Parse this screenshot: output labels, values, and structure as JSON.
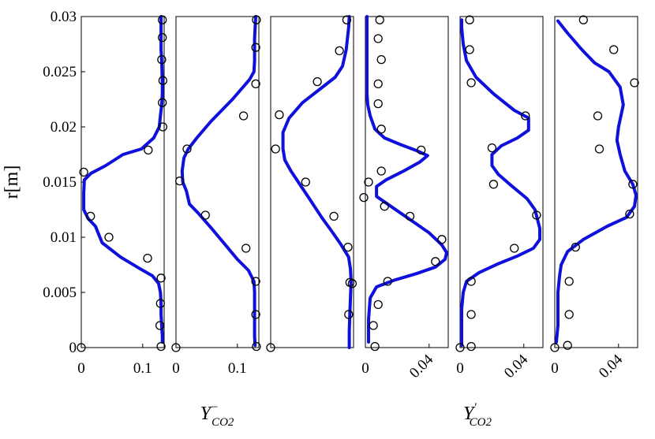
{
  "chart_data": {
    "type": "line",
    "ylabel": "r[m]",
    "ylim": [
      0,
      0.03
    ],
    "yticks": [
      "0",
      "0.005",
      "0.01",
      "0.015",
      "0.02",
      "0.025",
      "0.03"
    ],
    "group_labels": [
      {
        "base": "Y",
        "sup": "−",
        "sub": "CO2"
      },
      {
        "base": "Y",
        "sup": "′",
        "sub": "CO2"
      }
    ],
    "panels": [
      {
        "xlim": [
          0,
          0.135
        ],
        "xticks": [
          {
            "value": 0,
            "label": "0"
          },
          {
            "value": 0.1,
            "label": "0.1"
          }
        ],
        "xtick_rotated": false,
        "line": [
          [
            0.13,
            0.03
          ],
          [
            0.13,
            0.029
          ],
          [
            0.13,
            0.028
          ],
          [
            0.13,
            0.027
          ],
          [
            0.131,
            0.026
          ],
          [
            0.132,
            0.024
          ],
          [
            0.132,
            0.023
          ],
          [
            0.131,
            0.022
          ],
          [
            0.129,
            0.021
          ],
          [
            0.127,
            0.02
          ],
          [
            0.118,
            0.019
          ],
          [
            0.098,
            0.018
          ],
          [
            0.068,
            0.0175
          ],
          [
            0.04,
            0.0165
          ],
          [
            0.016,
            0.0158
          ],
          [
            0.005,
            0.0152
          ],
          [
            0.004,
            0.014
          ],
          [
            0.004,
            0.0125
          ],
          [
            0.011,
            0.0117
          ],
          [
            0.023,
            0.011
          ],
          [
            0.034,
            0.0095
          ],
          [
            0.064,
            0.0082
          ],
          [
            0.094,
            0.0072
          ],
          [
            0.116,
            0.0065
          ],
          [
            0.126,
            0.0058
          ],
          [
            0.129,
            0.005
          ],
          [
            0.13,
            0.004
          ],
          [
            0.13,
            0.003
          ],
          [
            0.131,
            0.002
          ],
          [
            0.132,
            0.001
          ],
          [
            0.132,
            0.0005
          ]
        ],
        "points": [
          [
            0.132,
            0.0297
          ],
          [
            0.132,
            0.0281
          ],
          [
            0.131,
            0.0261
          ],
          [
            0.133,
            0.0242
          ],
          [
            0.132,
            0.0222
          ],
          [
            0.133,
            0.02
          ],
          [
            0.109,
            0.0179
          ],
          [
            0.004,
            0.0159
          ],
          [
            0.015,
            0.0119
          ],
          [
            0.045,
            0.01
          ],
          [
            0.108,
            0.0081
          ],
          [
            0.13,
            0.0063
          ],
          [
            0.129,
            0.004
          ],
          [
            0.128,
            0.002
          ],
          [
            0.13,
            0.0001
          ],
          [
            0.0,
            0.0
          ]
        ]
      },
      {
        "xlim": [
          0,
          0.135
        ],
        "xticks": [
          {
            "value": 0,
            "label": "0"
          },
          {
            "value": 0.1,
            "label": "0.1"
          }
        ],
        "xtick_rotated": false,
        "line": [
          [
            0.13,
            0.03
          ],
          [
            0.129,
            0.029
          ],
          [
            0.128,
            0.028
          ],
          [
            0.128,
            0.026
          ],
          [
            0.127,
            0.025
          ],
          [
            0.12,
            0.0243
          ],
          [
            0.092,
            0.0225
          ],
          [
            0.057,
            0.0205
          ],
          [
            0.034,
            0.019
          ],
          [
            0.02,
            0.018
          ],
          [
            0.013,
            0.0172
          ],
          [
            0.01,
            0.016
          ],
          [
            0.011,
            0.015
          ],
          [
            0.017,
            0.0142
          ],
          [
            0.022,
            0.013
          ],
          [
            0.036,
            0.0122
          ],
          [
            0.058,
            0.0108
          ],
          [
            0.082,
            0.0092
          ],
          [
            0.1,
            0.008
          ],
          [
            0.118,
            0.007
          ],
          [
            0.127,
            0.006
          ],
          [
            0.128,
            0.005
          ],
          [
            0.128,
            0.004
          ],
          [
            0.128,
            0.003
          ],
          [
            0.128,
            0.002
          ],
          [
            0.128,
            0.001
          ],
          [
            0.129,
            0.0002
          ]
        ],
        "points": [
          [
            0.131,
            0.0297
          ],
          [
            0.13,
            0.0272
          ],
          [
            0.13,
            0.0239
          ],
          [
            0.11,
            0.021
          ],
          [
            0.018,
            0.018
          ],
          [
            0.006,
            0.0151
          ],
          [
            0.048,
            0.012
          ],
          [
            0.114,
            0.009
          ],
          [
            0.13,
            0.006
          ],
          [
            0.13,
            0.003
          ],
          [
            0.131,
            0.0001
          ],
          [
            0.0,
            0.0
          ]
        ]
      },
      {
        "xlim": [
          0,
          0.135
        ],
        "xticks": [],
        "xtick_rotated": false,
        "line": [
          [
            0.128,
            0.03
          ],
          [
            0.127,
            0.029
          ],
          [
            0.123,
            0.027
          ],
          [
            0.117,
            0.0255
          ],
          [
            0.105,
            0.0245
          ],
          [
            0.082,
            0.0235
          ],
          [
            0.052,
            0.0222
          ],
          [
            0.03,
            0.0208
          ],
          [
            0.02,
            0.0195
          ],
          [
            0.02,
            0.018
          ],
          [
            0.023,
            0.017
          ],
          [
            0.033,
            0.016
          ],
          [
            0.045,
            0.015
          ],
          [
            0.063,
            0.0135
          ],
          [
            0.083,
            0.0118
          ],
          [
            0.1,
            0.0105
          ],
          [
            0.115,
            0.0093
          ],
          [
            0.127,
            0.0082
          ],
          [
            0.13,
            0.0071
          ],
          [
            0.131,
            0.006
          ],
          [
            0.13,
            0.0045
          ],
          [
            0.129,
            0.003
          ],
          [
            0.128,
            0.0015
          ],
          [
            0.128,
            0.0
          ]
        ],
        "points": [
          [
            0.124,
            0.0297
          ],
          [
            0.112,
            0.0269
          ],
          [
            0.076,
            0.0241
          ],
          [
            0.014,
            0.0211
          ],
          [
            0.008,
            0.018
          ],
          [
            0.057,
            0.015
          ],
          [
            0.103,
            0.0119
          ],
          [
            0.126,
            0.0091
          ],
          [
            0.129,
            0.0059
          ],
          [
            0.133,
            0.0058
          ],
          [
            0.127,
            0.003
          ],
          [
            0.0,
            0.0
          ]
        ]
      },
      {
        "xlim": [
          0,
          0.052
        ],
        "xticks": [
          {
            "value": 0,
            "label": "0"
          },
          {
            "value": 0.04,
            "label": "0.04"
          }
        ],
        "xtick_rotated": true,
        "line": [
          [
            0.001,
            0.03
          ],
          [
            0.001,
            0.029
          ],
          [
            0.001,
            0.027
          ],
          [
            0.001,
            0.025
          ],
          [
            0.001,
            0.023
          ],
          [
            0.0015,
            0.022
          ],
          [
            0.003,
            0.021
          ],
          [
            0.006,
            0.0198
          ],
          [
            0.012,
            0.019
          ],
          [
            0.022,
            0.0184
          ],
          [
            0.033,
            0.0178
          ],
          [
            0.039,
            0.0174
          ],
          [
            0.034,
            0.0168
          ],
          [
            0.024,
            0.016
          ],
          [
            0.013,
            0.0152
          ],
          [
            0.007,
            0.0146
          ],
          [
            0.007,
            0.0137
          ],
          [
            0.012,
            0.0132
          ],
          [
            0.021,
            0.0123
          ],
          [
            0.03,
            0.0114
          ],
          [
            0.04,
            0.0104
          ],
          [
            0.048,
            0.0093
          ],
          [
            0.051,
            0.0086
          ],
          [
            0.05,
            0.008
          ],
          [
            0.044,
            0.0073
          ],
          [
            0.032,
            0.0067
          ],
          [
            0.018,
            0.0061
          ],
          [
            0.007,
            0.0055
          ],
          [
            0.003,
            0.0045
          ],
          [
            0.0025,
            0.0035
          ],
          [
            0.002,
            0.0025
          ],
          [
            0.002,
            0.0015
          ],
          [
            0.002,
            0.0005
          ]
        ],
        "points": [
          [
            0.009,
            0.0297
          ],
          [
            0.008,
            0.028
          ],
          [
            0.01,
            0.0261
          ],
          [
            0.008,
            0.0239
          ],
          [
            0.008,
            0.0221
          ],
          [
            0.01,
            0.0198
          ],
          [
            0.035,
            0.0179
          ],
          [
            0.01,
            0.016
          ],
          [
            0.002,
            0.015
          ],
          [
            -0.001,
            0.0136
          ],
          [
            0.012,
            0.0128
          ],
          [
            0.028,
            0.0119
          ],
          [
            0.048,
            0.0098
          ],
          [
            0.044,
            0.0078
          ],
          [
            0.014,
            0.006
          ],
          [
            0.008,
            0.0039
          ],
          [
            0.005,
            0.002
          ],
          [
            0.006,
            0.0001
          ]
        ]
      },
      {
        "xlim": [
          0,
          0.052
        ],
        "xticks": [
          {
            "value": 0,
            "label": "0"
          },
          {
            "value": 0.04,
            "label": "0.04"
          }
        ],
        "xtick_rotated": true,
        "line": [
          [
            0.001,
            0.0297
          ],
          [
            0.001,
            0.029
          ],
          [
            0.002,
            0.0275
          ],
          [
            0.004,
            0.026
          ],
          [
            0.01,
            0.0245
          ],
          [
            0.021,
            0.023
          ],
          [
            0.034,
            0.0215
          ],
          [
            0.043,
            0.0208
          ],
          [
            0.043,
            0.0197
          ],
          [
            0.036,
            0.019
          ],
          [
            0.026,
            0.0183
          ],
          [
            0.02,
            0.0175
          ],
          [
            0.02,
            0.0165
          ],
          [
            0.024,
            0.0157
          ],
          [
            0.032,
            0.0147
          ],
          [
            0.042,
            0.0135
          ],
          [
            0.047,
            0.0125
          ],
          [
            0.05,
            0.0108
          ],
          [
            0.05,
            0.0098
          ],
          [
            0.046,
            0.009
          ],
          [
            0.036,
            0.0083
          ],
          [
            0.024,
            0.0076
          ],
          [
            0.012,
            0.0068
          ],
          [
            0.004,
            0.006
          ],
          [
            0.002,
            0.005
          ],
          [
            0.001,
            0.0035
          ],
          [
            0.001,
            0.002
          ],
          [
            0.001,
            0.0002
          ]
        ],
        "points": [
          [
            0.006,
            0.0297
          ],
          [
            0.006,
            0.027
          ],
          [
            0.007,
            0.024
          ],
          [
            0.041,
            0.021
          ],
          [
            0.02,
            0.0181
          ],
          [
            0.021,
            0.0148
          ],
          [
            0.048,
            0.012
          ],
          [
            0.034,
            0.009
          ],
          [
            0.007,
            0.006
          ],
          [
            0.007,
            0.003
          ],
          [
            0.007,
            0.0001
          ],
          [
            0.0,
            0.0
          ]
        ]
      },
      {
        "xlim": [
          0,
          0.052
        ],
        "xticks": [
          {
            "value": 0,
            "label": "0"
          },
          {
            "value": 0.04,
            "label": "0.04"
          }
        ],
        "xtick_rotated": true,
        "line": [
          [
            0.002,
            0.0296
          ],
          [
            0.008,
            0.0285
          ],
          [
            0.017,
            0.027
          ],
          [
            0.025,
            0.0258
          ],
          [
            0.034,
            0.025
          ],
          [
            0.041,
            0.0236
          ],
          [
            0.043,
            0.022
          ],
          [
            0.04,
            0.02
          ],
          [
            0.039,
            0.0188
          ],
          [
            0.041,
            0.0175
          ],
          [
            0.044,
            0.016
          ],
          [
            0.049,
            0.0148
          ],
          [
            0.051,
            0.0138
          ],
          [
            0.05,
            0.0128
          ],
          [
            0.045,
            0.0118
          ],
          [
            0.033,
            0.011
          ],
          [
            0.018,
            0.0098
          ],
          [
            0.008,
            0.0087
          ],
          [
            0.004,
            0.0075
          ],
          [
            0.003,
            0.0065
          ],
          [
            0.002,
            0.005
          ],
          [
            0.002,
            0.0035
          ],
          [
            0.002,
            0.002
          ],
          [
            0.001,
            0.0005
          ]
        ],
        "points": [
          [
            0.018,
            0.0297
          ],
          [
            0.037,
            0.027
          ],
          [
            0.05,
            0.024
          ],
          [
            0.027,
            0.021
          ],
          [
            0.028,
            0.018
          ],
          [
            0.049,
            0.0148
          ],
          [
            0.047,
            0.0121
          ],
          [
            0.013,
            0.0091
          ],
          [
            0.009,
            0.006
          ],
          [
            0.009,
            0.003
          ],
          [
            0.008,
            0.0002
          ],
          [
            0.0,
            0.0
          ]
        ]
      }
    ]
  }
}
